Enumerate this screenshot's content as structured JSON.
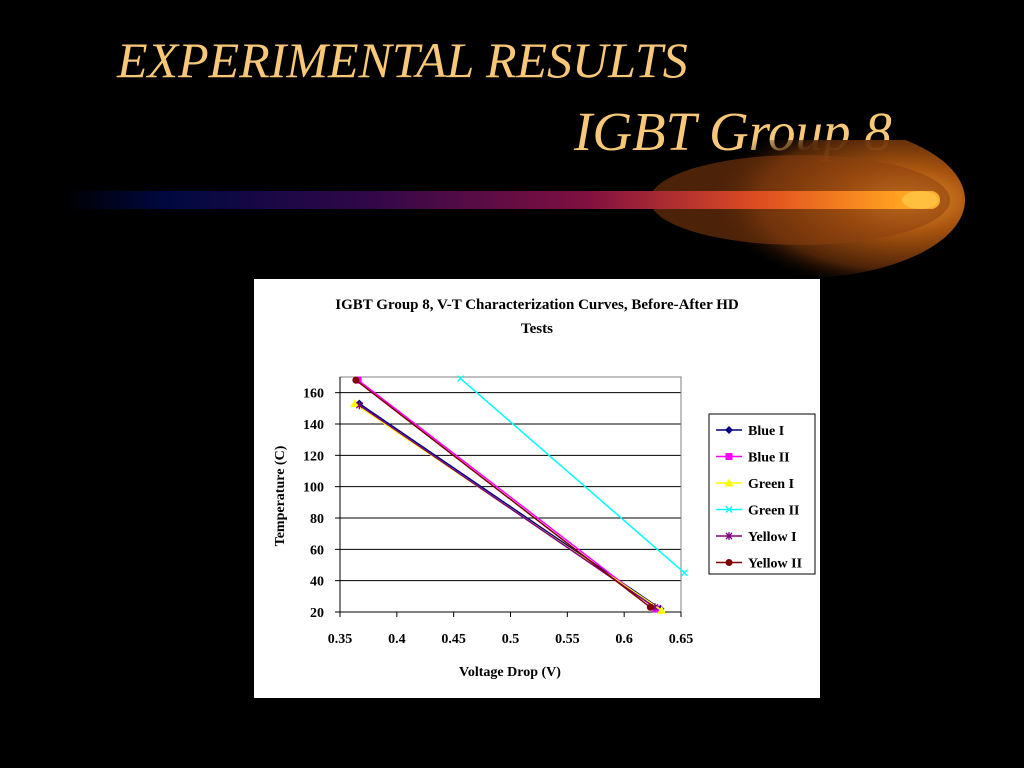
{
  "slide": {
    "title_line1": "EXPERIMENTAL RESULTS",
    "title_line2": "IGBT Group 8",
    "title_color": "#f8c878",
    "background_color": "#000000"
  },
  "chart_data": {
    "type": "line",
    "title": "IGBT Group 8, V-T Characterization Curves, Before-After HD Tests",
    "title_lines": [
      "IGBT Group 8, V-T Characterization Curves, Before-After HD",
      "Tests"
    ],
    "xlabel": "Voltage Drop (V)",
    "ylabel": "Temperature (C)",
    "xlim": [
      0.35,
      0.65
    ],
    "ylim": [
      20,
      170
    ],
    "xticks": [
      "0.35",
      "0.4",
      "0.45",
      "0.5",
      "0.55",
      "0.6",
      "0.65"
    ],
    "yticks": [
      "20",
      "40",
      "60",
      "80",
      "100",
      "120",
      "140",
      "160"
    ],
    "grid": "horizontal",
    "legend_position": "right",
    "series": [
      {
        "name": "Blue I",
        "color": "#000080",
        "marker": "diamond",
        "x": [
          0.367,
          0.632
        ],
        "y": [
          153,
          22
        ]
      },
      {
        "name": "Blue II",
        "color": "#ff00ff",
        "marker": "square",
        "x": [
          0.366,
          0.628
        ],
        "y": [
          168,
          22
        ]
      },
      {
        "name": "Green I",
        "color": "#ffff00",
        "marker": "triangle",
        "x": [
          0.363,
          0.633
        ],
        "y": [
          153,
          21
        ]
      },
      {
        "name": "Green II",
        "color": "#00ffff",
        "marker": "x",
        "x": [
          0.456,
          0.653
        ],
        "y": [
          169,
          45
        ]
      },
      {
        "name": "Yellow I",
        "color": "#800080",
        "marker": "star",
        "x": [
          0.367,
          0.627
        ],
        "y": [
          152,
          23
        ]
      },
      {
        "name": "Yellow II",
        "color": "#800000",
        "marker": "circle",
        "x": [
          0.364,
          0.623
        ],
        "y": [
          168,
          23
        ]
      }
    ]
  }
}
